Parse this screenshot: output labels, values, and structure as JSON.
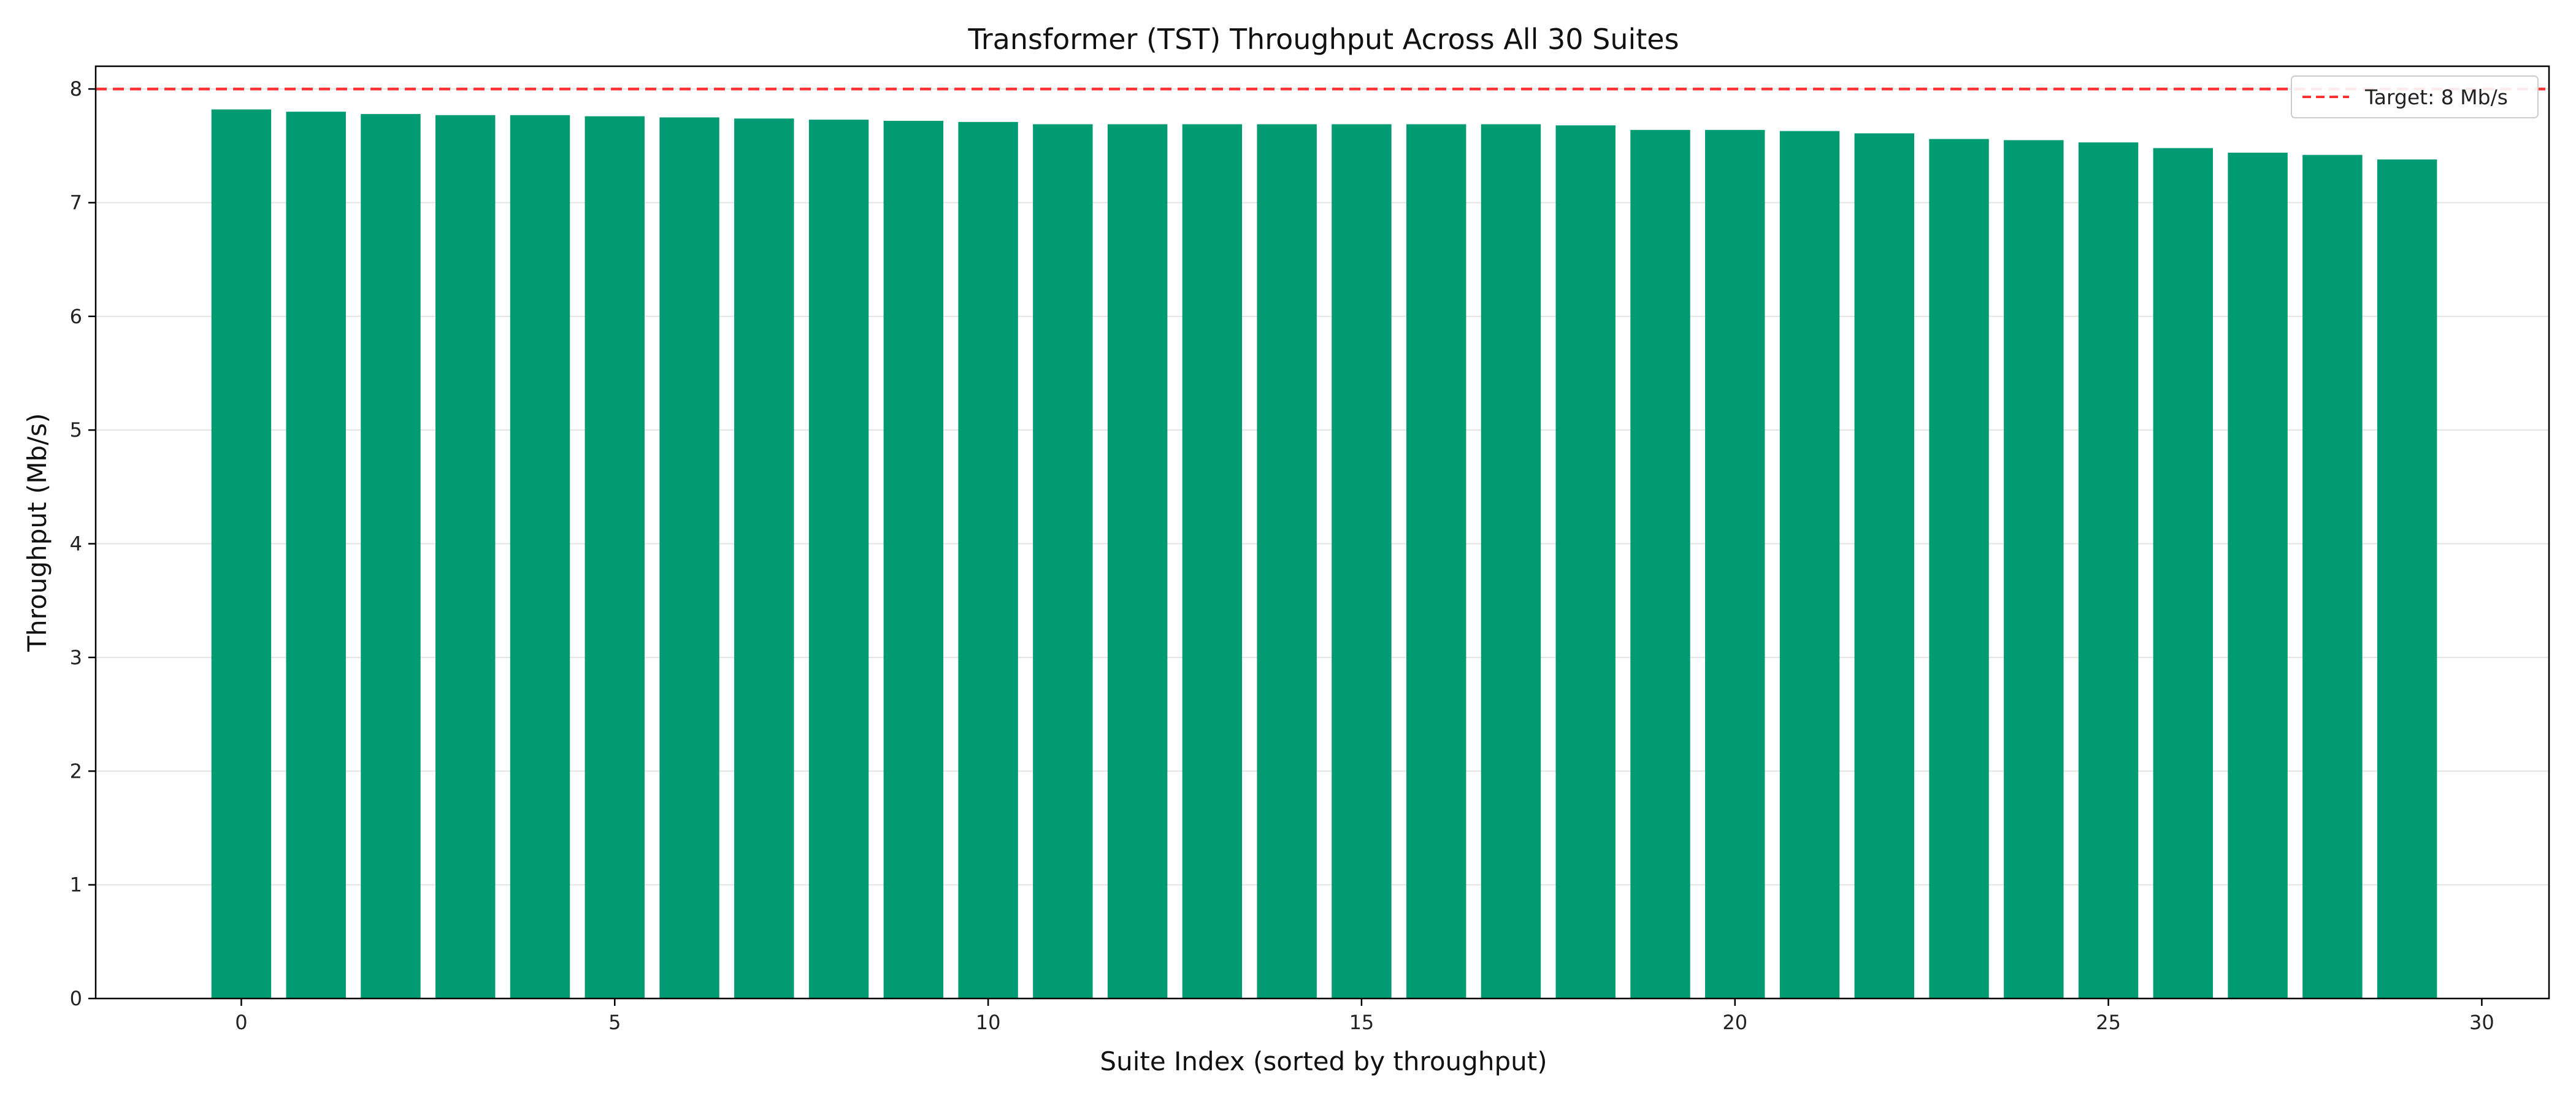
{
  "chart_data": {
    "type": "bar",
    "title": "Transformer (TST) Throughput Across All 30 Suites",
    "xlabel": "Suite Index (sorted by throughput)",
    "ylabel": "Throughput (Mb/s)",
    "x": [
      0,
      1,
      2,
      3,
      4,
      5,
      6,
      7,
      8,
      9,
      10,
      11,
      12,
      13,
      14,
      15,
      16,
      17,
      18,
      19,
      20,
      21,
      22,
      23,
      24,
      25,
      26,
      27,
      28,
      29
    ],
    "values": [
      7.82,
      7.8,
      7.78,
      7.77,
      7.77,
      7.76,
      7.75,
      7.74,
      7.73,
      7.72,
      7.71,
      7.69,
      7.69,
      7.69,
      7.69,
      7.69,
      7.69,
      7.69,
      7.68,
      7.64,
      7.64,
      7.63,
      7.61,
      7.56,
      7.55,
      7.53,
      7.48,
      7.44,
      7.42,
      7.38
    ],
    "xlim": [
      -1.95,
      30.9
    ],
    "ylim": [
      0,
      8.2
    ],
    "x_ticks": [
      "0",
      "5",
      "10",
      "15",
      "20",
      "25",
      "30"
    ],
    "y_ticks": [
      "0",
      "1",
      "2",
      "3",
      "4",
      "5",
      "6",
      "7",
      "8"
    ],
    "target_line": {
      "value": 8,
      "label": "Target: 8 Mb/s",
      "color": "#ff3333",
      "style": "dashed"
    },
    "bar_color": "#009b72",
    "grid": "horizontal",
    "legend": "upper right"
  }
}
